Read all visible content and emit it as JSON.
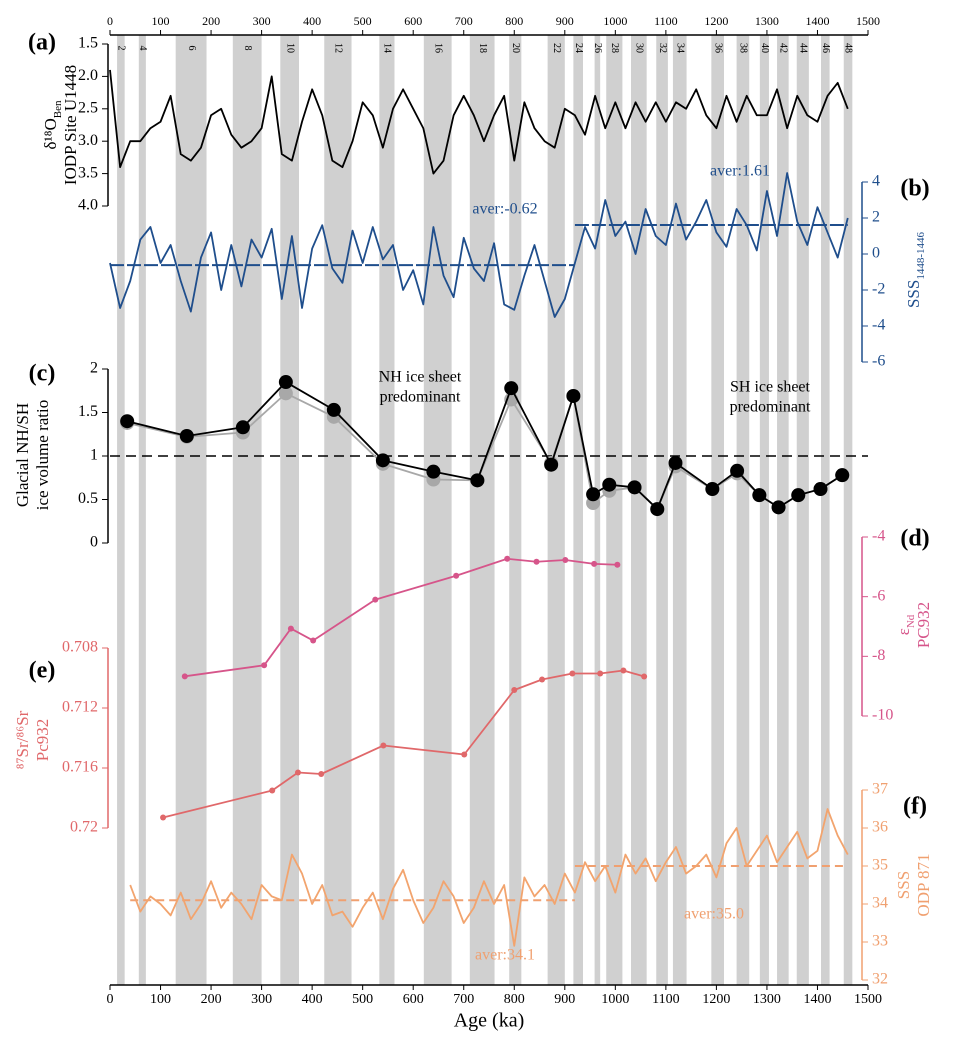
{
  "x_axis": {
    "label": "Age (ka)",
    "xlim": [
      0,
      1500
    ],
    "xticks": [
      0,
      100,
      200,
      300,
      400,
      500,
      600,
      700,
      800,
      900,
      1000,
      1100,
      1200,
      1300,
      1400,
      1500
    ]
  },
  "glacial_stages": [
    {
      "label": "2",
      "start": 14,
      "end": 29
    },
    {
      "label": "4",
      "start": 57,
      "end": 71
    },
    {
      "label": "6",
      "start": 130,
      "end": 191
    },
    {
      "label": "8",
      "start": 243,
      "end": 300
    },
    {
      "label": "10",
      "start": 337,
      "end": 374
    },
    {
      "label": "12",
      "start": 424,
      "end": 478
    },
    {
      "label": "14",
      "start": 533,
      "end": 563
    },
    {
      "label": "16",
      "start": 621,
      "end": 676
    },
    {
      "label": "18",
      "start": 712,
      "end": 761
    },
    {
      "label": "20",
      "start": 790,
      "end": 814
    },
    {
      "label": "22",
      "start": 866,
      "end": 900
    },
    {
      "label": "24",
      "start": 917,
      "end": 936
    },
    {
      "label": "26",
      "start": 959,
      "end": 970
    },
    {
      "label": "28",
      "start": 982,
      "end": 1014
    },
    {
      "label": "30",
      "start": 1031,
      "end": 1062
    },
    {
      "label": "32",
      "start": 1081,
      "end": 1104
    },
    {
      "label": "34",
      "start": 1114,
      "end": 1141
    },
    {
      "label": "36",
      "start": 1190,
      "end": 1215
    },
    {
      "label": "38",
      "start": 1240,
      "end": 1265
    },
    {
      "label": "40",
      "start": 1286,
      "end": 1304
    },
    {
      "label": "42",
      "start": 1320,
      "end": 1343
    },
    {
      "label": "44",
      "start": 1359,
      "end": 1383
    },
    {
      "label": "46",
      "start": 1407,
      "end": 1424
    },
    {
      "label": "48",
      "start": 1452,
      "end": 1469
    }
  ],
  "chart_data": [
    {
      "type": "line",
      "panel": "(a)",
      "y_label": [
        "δ¹⁸O",
        "IODP Site U1448"
      ],
      "y_label_sub": "Ben",
      "color": "#000000",
      "ylim": [
        1.5,
        4.0
      ],
      "y_inverted": true,
      "yticks": [
        1.5,
        {
          "value": 2,
          "label": "2.0"
        },
        2.5,
        {
          "value": 3,
          "label": "3.0"
        },
        3.5,
        {
          "value": 4,
          "label": "4.0"
        }
      ],
      "x": [
        0,
        20,
        40,
        60,
        80,
        100,
        120,
        140,
        160,
        180,
        200,
        220,
        240,
        260,
        280,
        300,
        320,
        340,
        360,
        380,
        400,
        420,
        440,
        460,
        480,
        500,
        520,
        540,
        560,
        580,
        600,
        620,
        640,
        660,
        680,
        700,
        720,
        740,
        760,
        780,
        800,
        820,
        840,
        860,
        880,
        900,
        920,
        940,
        960,
        980,
        1000,
        1020,
        1040,
        1060,
        1080,
        1100,
        1120,
        1140,
        1160,
        1180,
        1200,
        1220,
        1240,
        1260,
        1280,
        1300,
        1320,
        1340,
        1360,
        1380,
        1400,
        1420,
        1440,
        1460
      ],
      "series": [
        {
          "color": "#000000",
          "values": [
            1.9,
            3.4,
            3.0,
            3.0,
            2.8,
            2.7,
            2.3,
            3.2,
            3.3,
            3.1,
            2.6,
            2.5,
            2.9,
            3.1,
            3.0,
            2.8,
            2.0,
            3.2,
            3.3,
            2.7,
            2.2,
            2.6,
            3.3,
            3.4,
            3.0,
            2.4,
            2.6,
            3.1,
            2.5,
            2.2,
            2.5,
            2.8,
            3.5,
            3.3,
            2.6,
            2.3,
            2.6,
            3.0,
            2.6,
            2.3,
            3.3,
            2.4,
            2.8,
            3.0,
            3.1,
            2.5,
            2.6,
            2.9,
            2.3,
            2.8,
            2.4,
            2.8,
            2.4,
            2.7,
            2.4,
            2.7,
            2.4,
            2.5,
            2.2,
            2.6,
            2.8,
            2.3,
            2.7,
            2.3,
            2.6,
            2.6,
            2.2,
            2.8,
            2.3,
            2.6,
            2.7,
            2.3,
            2.1,
            2.5
          ]
        }
      ]
    },
    {
      "type": "line",
      "panel": "(b)",
      "y_label": [
        "SSS"
      ],
      "y_label_sub": "1448-1446",
      "color": "#1f4e8c",
      "ylim": [
        -6,
        4
      ],
      "yticks": [
        -6,
        -4,
        -2,
        0,
        2,
        4
      ],
      "x": [
        0,
        20,
        40,
        60,
        80,
        100,
        120,
        140,
        160,
        180,
        200,
        220,
        240,
        260,
        280,
        300,
        320,
        340,
        360,
        380,
        400,
        420,
        440,
        460,
        480,
        500,
        520,
        540,
        560,
        580,
        600,
        620,
        640,
        660,
        680,
        700,
        720,
        740,
        760,
        780,
        800,
        820,
        840,
        860,
        880,
        900,
        920,
        940,
        960,
        980,
        1000,
        1020,
        1040,
        1060,
        1080,
        1100,
        1120,
        1140,
        1160,
        1180,
        1200,
        1220,
        1240,
        1260,
        1280,
        1300,
        1320,
        1340,
        1360,
        1380,
        1400,
        1420,
        1440,
        1460
      ],
      "series": [
        {
          "color": "#1f4e8c",
          "values": [
            -0.5,
            -3.0,
            -1.5,
            0.8,
            1.5,
            -0.5,
            0.5,
            -1.5,
            -3.2,
            -0.2,
            1.2,
            -2.0,
            0.5,
            -1.8,
            0.8,
            -0.2,
            1.4,
            -2.5,
            1.0,
            -3.0,
            0.3,
            1.6,
            -0.8,
            -1.6,
            1.3,
            -0.5,
            1.5,
            -0.3,
            0.5,
            -2.0,
            -0.9,
            -2.8,
            1.5,
            -1.2,
            -2.4,
            0.9,
            -0.8,
            -1.5,
            0.6,
            -2.8,
            -3.1,
            -1.2,
            0.5,
            -1.5,
            -3.5,
            -2.5,
            -0.5,
            1.5,
            0.3,
            3.0,
            1.0,
            1.8,
            0.0,
            2.5,
            1.0,
            0.5,
            2.8,
            0.8,
            1.8,
            3.0,
            1.2,
            0.4,
            2.5,
            1.6,
            0.2,
            3.5,
            1.0,
            4.5,
            1.8,
            0.5,
            2.6,
            1.2,
            -0.2,
            2.0
          ]
        }
      ],
      "averages": [
        {
          "value": -0.62,
          "label": "aver:-0.62",
          "x": [
            0,
            920
          ]
        },
        {
          "value": 1.61,
          "label": "aver:1.61",
          "x": [
            920,
            1460
          ]
        }
      ]
    },
    {
      "type": "line",
      "panel": "(c)",
      "y_label": [
        "Glacial NH/SH",
        "ice volume ratio"
      ],
      "color": "#000000",
      "ylim": [
        0,
        2
      ],
      "yticks": [
        0,
        0.5,
        1,
        1.5,
        2
      ],
      "reference_line": 1,
      "annotations": [
        [
          "NH ice sheet",
          "predominant"
        ],
        [
          "SH ice sheet",
          "predominant"
        ]
      ],
      "x": [
        34,
        152,
        263,
        348,
        443,
        540,
        640,
        727,
        794,
        873,
        917,
        956,
        988,
        1038,
        1083,
        1119,
        1192,
        1241,
        1285,
        1323,
        1362,
        1406,
        1449
      ],
      "series": [
        {
          "color": "#a8a8a8",
          "markers": true,
          "values": [
            1.38,
            1.22,
            1.27,
            1.72,
            1.45,
            0.91,
            0.73,
            0.72,
            1.65,
            0.92,
            1.69,
            0.46,
            0.6,
            0.64,
            0.39,
            0.88,
            0.62,
            0.8,
            0.55,
            0.41,
            0.55,
            0.62,
            0.78
          ]
        },
        {
          "color": "#000000",
          "markers": true,
          "values": [
            1.4,
            1.23,
            1.33,
            1.85,
            1.53,
            0.95,
            0.82,
            0.72,
            1.78,
            0.9,
            1.69,
            0.56,
            0.67,
            0.64,
            0.39,
            0.92,
            0.62,
            0.83,
            0.55,
            0.41,
            0.55,
            0.62,
            0.78
          ]
        }
      ]
    },
    {
      "type": "line",
      "panel": "(d)",
      "y_label": [
        "ε",
        "PC932"
      ],
      "y_label_sub": "Nd",
      "color": "#d6558a",
      "ylim": [
        -10,
        -4
      ],
      "yticks": [
        -4,
        -6,
        -8,
        -10
      ],
      "x": [
        148,
        305,
        358,
        402,
        525,
        685,
        786,
        844,
        901,
        958,
        1004
      ],
      "series": [
        {
          "color": "#d6558a",
          "markers": true,
          "values": [
            -8.67,
            -8.3,
            -7.07,
            -7.47,
            -6.1,
            -5.3,
            -4.73,
            -4.83,
            -4.77,
            -4.9,
            -4.93
          ]
        }
      ]
    },
    {
      "type": "line",
      "panel": "(e)",
      "y_label": [
        "⁸⁷Sr/⁸⁶Sr",
        "Pc932"
      ],
      "color": "#e0686a",
      "ylim": [
        0.708,
        0.72
      ],
      "y_inverted": true,
      "yticks": [
        0.708,
        0.712,
        0.716,
        0.72
      ],
      "x": [
        105,
        321,
        372,
        418,
        541,
        701,
        800,
        855,
        915,
        970,
        1016,
        1057
      ],
      "series": [
        {
          "color": "#e0686a",
          "markers": true,
          "values": [
            0.7193,
            0.7175,
            0.7163,
            0.7164,
            0.7145,
            0.7151,
            0.7108,
            0.7101,
            0.7097,
            0.7097,
            0.7095,
            0.7099
          ]
        }
      ]
    },
    {
      "type": "line",
      "panel": "(f)",
      "y_label": [
        "SSS",
        "ODP 871"
      ],
      "color": "#f0a070",
      "ylim": [
        32,
        37
      ],
      "yticks": [
        32,
        33,
        34,
        35,
        36,
        37
      ],
      "x": [
        40,
        60,
        80,
        100,
        120,
        140,
        160,
        180,
        200,
        220,
        240,
        260,
        280,
        300,
        320,
        340,
        360,
        380,
        400,
        420,
        440,
        460,
        480,
        500,
        520,
        540,
        560,
        580,
        600,
        620,
        640,
        660,
        680,
        700,
        720,
        740,
        760,
        780,
        800,
        820,
        840,
        860,
        880,
        900,
        920,
        940,
        960,
        980,
        1000,
        1020,
        1040,
        1060,
        1080,
        1100,
        1120,
        1140,
        1160,
        1180,
        1200,
        1220,
        1240,
        1260,
        1280,
        1300,
        1320,
        1340,
        1360,
        1380,
        1400,
        1420,
        1440,
        1460
      ],
      "series": [
        {
          "color": "#f2a46e",
          "values": [
            34.5,
            33.8,
            34.2,
            34.0,
            33.7,
            34.3,
            33.6,
            34.0,
            34.6,
            33.9,
            34.3,
            34.0,
            33.6,
            34.5,
            34.2,
            34.1,
            35.3,
            34.8,
            34.0,
            34.5,
            33.7,
            33.8,
            33.4,
            33.9,
            34.3,
            33.6,
            34.4,
            34.9,
            34.1,
            33.5,
            33.9,
            34.6,
            34.2,
            33.5,
            33.9,
            34.6,
            34.0,
            34.5,
            32.9,
            34.7,
            34.2,
            34.5,
            34.0,
            34.8,
            34.3,
            35.1,
            34.6,
            35.0,
            34.3,
            35.3,
            34.8,
            35.2,
            34.6,
            35.1,
            35.5,
            34.8,
            35.0,
            35.3,
            34.7,
            35.6,
            36.0,
            35.0,
            35.4,
            35.8,
            35.1,
            35.5,
            35.9,
            35.2,
            35.4,
            36.5,
            35.8,
            35.3
          ]
        }
      ],
      "averages": [
        {
          "value": 34.1,
          "label": "aver:34.1",
          "x": [
            40,
            920
          ]
        },
        {
          "value": 35.0,
          "label": "aver:35.0",
          "x": [
            920,
            1460
          ]
        }
      ]
    }
  ]
}
